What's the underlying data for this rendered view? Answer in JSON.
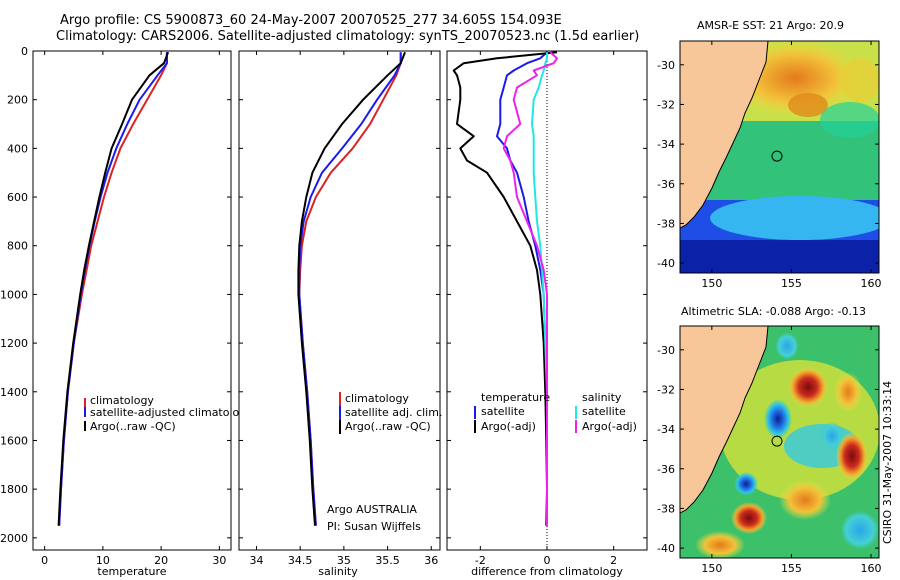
{
  "header": {
    "line1": "Argo profile: CS 5900873_60 24-May-2007 20070525_277 34.605S 154.093E",
    "line2": "Climatology: CARS2006. Satellite-adjusted climatology: synTS_20070523.nc (1.5d earlier)"
  },
  "credit": "CSIRO 31-May-2007 10:33:14",
  "colors": {
    "red": "#dd2222",
    "blue": "#1a1aee",
    "black": "#000000",
    "cyan": "#22e6e6",
    "magenta": "#ee22ee",
    "land": "#f7c799"
  },
  "chart_data": [
    {
      "type": "line",
      "name": "temperature",
      "xlabel": "temperature",
      "ylabel": "",
      "xlim": [
        -2,
        32
      ],
      "ylim": [
        2050,
        0
      ],
      "xticks": [
        "0",
        "10",
        "20",
        "30"
      ],
      "yticks": [
        "0",
        "200",
        "400",
        "600",
        "800",
        "1000",
        "1200",
        "1400",
        "1600",
        "1800",
        "2000"
      ],
      "legend": [
        "climatology",
        "satellite-adjusted climatology",
        "Argo(..raw -QC)"
      ],
      "legend_loc": "lower-right",
      "depth": [
        5,
        50,
        100,
        200,
        300,
        400,
        500,
        600,
        700,
        800,
        900,
        1000,
        1200,
        1400,
        1600,
        1800,
        1950
      ],
      "series": [
        {
          "name": "climatology",
          "color": "red",
          "values": [
            21.0,
            21.0,
            20.0,
            17.6,
            15.2,
            13.0,
            11.5,
            10.2,
            9.1,
            8.0,
            7.2,
            6.4,
            5.0,
            4.0,
            3.3,
            2.8,
            2.5
          ]
        },
        {
          "name": "satellite-adjusted climatology",
          "color": "blue",
          "values": [
            21.0,
            21.0,
            19.4,
            16.3,
            14.2,
            12.3,
            10.8,
            9.6,
            8.6,
            7.7,
            6.9,
            6.2,
            5.0,
            4.0,
            3.3,
            2.8,
            2.5
          ]
        },
        {
          "name": "Argo(..raw -QC)",
          "color": "black",
          "values": [
            21.2,
            20.5,
            18.0,
            15.0,
            13.3,
            11.5,
            10.4,
            9.4,
            8.5,
            7.6,
            6.8,
            6.1,
            4.9,
            3.9,
            3.2,
            2.7,
            2.4
          ]
        }
      ]
    },
    {
      "type": "line",
      "name": "salinity",
      "xlabel": "salinity",
      "xlim": [
        33.8,
        36.1
      ],
      "ylim": [
        2050,
        0
      ],
      "xticks": [
        "34",
        "34.5",
        "35",
        "35.5",
        "36"
      ],
      "legend": [
        "climatology",
        "satellite adj. clim.",
        "Argo(..raw -QC)"
      ],
      "legend_loc": "lower-right",
      "annotation": [
        "Argo AUSTRALIA",
        "PI: Susan Wijffels"
      ],
      "depth": [
        5,
        50,
        100,
        200,
        300,
        400,
        500,
        600,
        700,
        800,
        900,
        1000,
        1200,
        1400,
        1600,
        1800,
        1950
      ],
      "series": [
        {
          "name": "climatology",
          "color": "red",
          "values": [
            35.65,
            35.65,
            35.6,
            35.45,
            35.3,
            35.1,
            34.85,
            34.68,
            34.57,
            34.52,
            34.5,
            34.49,
            34.53,
            34.58,
            34.62,
            34.65,
            34.68
          ]
        },
        {
          "name": "satellite adj. clim.",
          "color": "blue",
          "values": [
            35.65,
            35.65,
            35.58,
            35.38,
            35.2,
            34.98,
            34.75,
            34.62,
            34.54,
            34.5,
            34.49,
            34.49,
            34.53,
            34.58,
            34.62,
            34.65,
            34.68
          ]
        },
        {
          "name": "Argo(..raw -QC)",
          "color": "black",
          "values": [
            35.7,
            35.65,
            35.5,
            35.22,
            34.98,
            34.78,
            34.64,
            34.57,
            34.52,
            34.49,
            34.48,
            34.48,
            34.52,
            34.57,
            34.61,
            34.64,
            34.67
          ]
        }
      ]
    },
    {
      "type": "line",
      "name": "difference",
      "xlabel": "difference from climatology",
      "xlim": [
        -3,
        3
      ],
      "ylim": [
        2050,
        0
      ],
      "xticks": [
        "-2",
        "0",
        "2"
      ],
      "legend_temperature_title": "temperature",
      "legend_salinity_title": "salinity",
      "legend": [
        "satellite",
        "Argo(-adj)",
        "satellite",
        "Argo(-adj)"
      ],
      "depth": [
        5,
        30,
        50,
        80,
        100,
        150,
        200,
        300,
        350,
        400,
        450,
        500,
        600,
        700,
        800,
        900,
        1000,
        1200,
        1400,
        1600,
        1800,
        1950
      ],
      "series": [
        {
          "name": "temperature satellite",
          "color": "blue",
          "values": [
            0.0,
            -0.2,
            -0.6,
            -1.0,
            -1.2,
            -1.3,
            -1.4,
            -1.4,
            -1.5,
            -1.2,
            -1.1,
            -0.9,
            -0.7,
            -0.55,
            -0.35,
            -0.2,
            -0.1,
            -0.05,
            -0.02,
            0.0,
            0.0,
            0.0
          ]
        },
        {
          "name": "temperature Argo(-adj)",
          "color": "black",
          "values": [
            0.3,
            -1.5,
            -2.5,
            -2.8,
            -2.7,
            -2.6,
            -2.6,
            -2.7,
            -2.2,
            -2.6,
            -2.4,
            -1.8,
            -1.3,
            -0.9,
            -0.5,
            -0.3,
            -0.2,
            -0.1,
            -0.05,
            -0.02,
            0.0,
            -0.02
          ]
        },
        {
          "name": "salinity satellite",
          "color": "cyan",
          "values": [
            0.0,
            0.0,
            -0.05,
            -0.1,
            -0.15,
            -0.25,
            -0.4,
            -0.45,
            -0.4,
            -0.4,
            -0.4,
            -0.4,
            -0.35,
            -0.3,
            -0.2,
            -0.15,
            -0.1,
            -0.05,
            0.0,
            0.0,
            0.0,
            0.0
          ]
        },
        {
          "name": "salinity Argo(-adj)",
          "color": "magenta",
          "values": [
            0.1,
            0.3,
            0.2,
            -0.4,
            -0.3,
            -0.9,
            -1.0,
            -0.8,
            -1.2,
            -1.3,
            -1.1,
            -1.0,
            -0.9,
            -0.6,
            -0.3,
            -0.1,
            0.0,
            0.0,
            0.0,
            0.0,
            0.0,
            0.0
          ]
        }
      ]
    },
    {
      "type": "heatmap",
      "name": "sst-map",
      "title": "AMSR-E SST: 21 Argo: 20.9",
      "xlim": [
        148,
        160.5
      ],
      "ylim": [
        -40.5,
        -28.8
      ],
      "xticks": [
        "150",
        "155",
        "160"
      ],
      "yticks": [
        "-30",
        "-32",
        "-34",
        "-36",
        "-38",
        "-40"
      ],
      "argo_position": [
        154.093,
        -34.605
      ]
    },
    {
      "type": "heatmap",
      "name": "sla-map",
      "title": "Altimetric SLA: -0.088 Argo: -0.13",
      "xlim": [
        148,
        160.5
      ],
      "ylim": [
        -40.5,
        -28.8
      ],
      "xticks": [
        "150",
        "155",
        "160"
      ],
      "yticks": [
        "-30",
        "-32",
        "-34",
        "-36",
        "-38",
        "-40"
      ],
      "argo_position": [
        154.093,
        -34.605
      ]
    }
  ]
}
